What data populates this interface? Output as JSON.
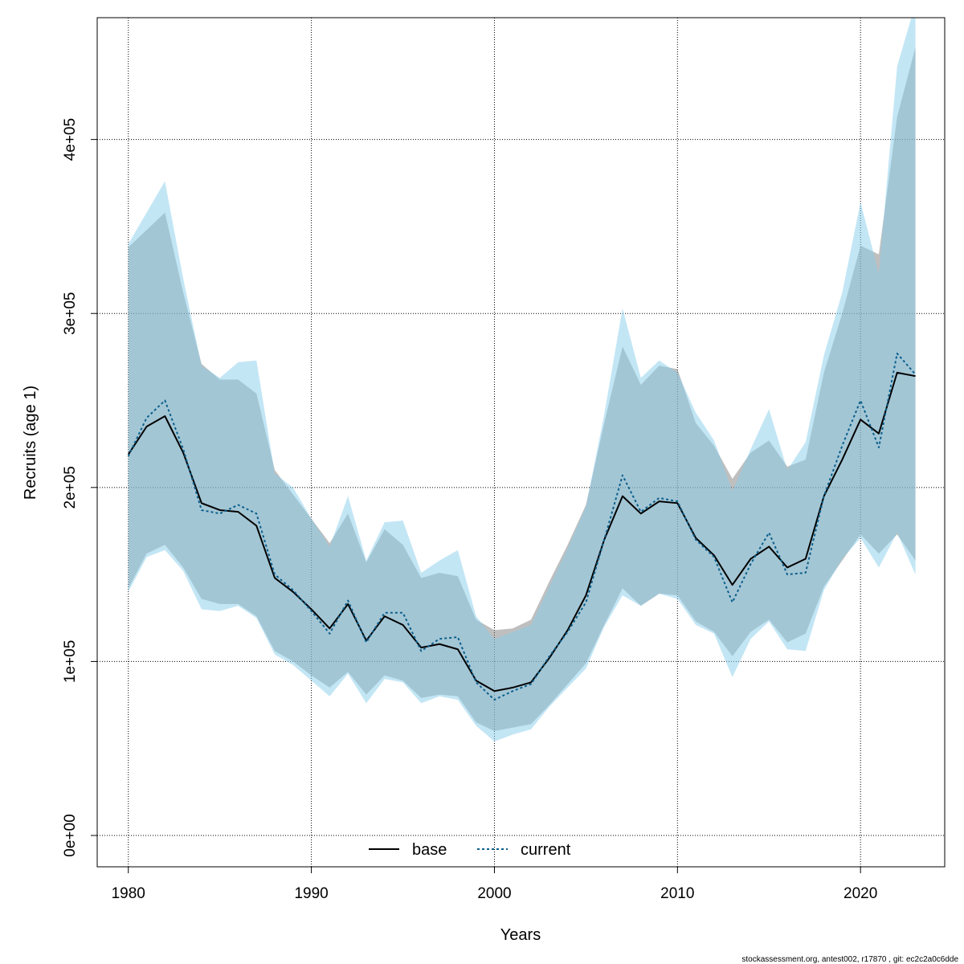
{
  "chart_data": {
    "type": "line",
    "title": "",
    "xlabel": "Years",
    "ylabel": "Recruits (age 1)",
    "xlim": [
      1978.3,
      2024.6
    ],
    "ylim": [
      -18000,
      470000
    ],
    "xticks": [
      1980,
      1990,
      2000,
      2010,
      2020
    ],
    "xtick_labels": [
      "1980",
      "1990",
      "2000",
      "2010",
      "2020"
    ],
    "yticks": [
      0,
      100000,
      200000,
      300000,
      400000
    ],
    "ytick_labels": [
      "0e+00",
      "1e+05",
      "2e+05",
      "3e+05",
      "4e+05"
    ],
    "grid": true,
    "legend_position": "bottom",
    "x": [
      1980,
      1981,
      1982,
      1983,
      1984,
      1985,
      1986,
      1987,
      1988,
      1989,
      1990,
      1991,
      1992,
      1993,
      1994,
      1995,
      1996,
      1997,
      1998,
      1999,
      2000,
      2001,
      2002,
      2003,
      2004,
      2005,
      2006,
      2007,
      2008,
      2009,
      2010,
      2011,
      2012,
      2013,
      2014,
      2015,
      2016,
      2017,
      2018,
      2019,
      2020,
      2021,
      2022,
      2023
    ],
    "series": [
      {
        "name": "base",
        "line_style": "solid",
        "color": "#000000",
        "band_color": "#7f7f7f",
        "values": [
          219000,
          235000,
          241000,
          220000,
          191000,
          187000,
          186000,
          178000,
          148000,
          140000,
          130000,
          119000,
          133000,
          112000,
          126000,
          121000,
          108000,
          110000,
          107000,
          89000,
          83000,
          85000,
          88000,
          102000,
          118000,
          138000,
          170000,
          195000,
          185000,
          192000,
          191000,
          171000,
          161000,
          144000,
          159000,
          166000,
          154000,
          159000,
          195000,
          216000,
          239000,
          231000,
          266000,
          264000
        ],
        "lower": [
          142000,
          162000,
          167000,
          154000,
          136000,
          133000,
          133000,
          126000,
          106000,
          100000,
          92000,
          85000,
          94000,
          81000,
          92000,
          89000,
          79000,
          81000,
          80000,
          65000,
          60000,
          62000,
          64000,
          75000,
          87000,
          99000,
          121000,
          142000,
          132000,
          139000,
          138000,
          123000,
          117000,
          103000,
          117000,
          124000,
          111000,
          116000,
          143000,
          158000,
          173000,
          162000,
          173000,
          158000
        ],
        "upper": [
          338000,
          348000,
          358000,
          312000,
          271000,
          262000,
          262000,
          254000,
          210000,
          196000,
          182000,
          168000,
          185000,
          157000,
          176000,
          167000,
          148000,
          151000,
          149000,
          124000,
          118000,
          119000,
          124000,
          146000,
          167000,
          190000,
          237000,
          281000,
          259000,
          270000,
          268000,
          237000,
          224000,
          205000,
          220000,
          227000,
          212000,
          216000,
          266000,
          300000,
          339000,
          334000,
          413000,
          453000
        ]
      },
      {
        "name": "current",
        "line_style": "dotted",
        "color": "#0b5f8c",
        "band_color": "#87ceeb",
        "values": [
          218000,
          240000,
          250000,
          222000,
          187000,
          185000,
          190000,
          185000,
          150000,
          141000,
          129000,
          116000,
          135000,
          111000,
          128000,
          128000,
          106000,
          113000,
          114000,
          88000,
          78000,
          83000,
          87000,
          103000,
          117000,
          134000,
          170000,
          207000,
          186000,
          194000,
          192000,
          170000,
          160000,
          134000,
          156000,
          174000,
          150000,
          151000,
          195000,
          224000,
          250000,
          223000,
          277000,
          265000
        ],
        "lower": [
          140000,
          160000,
          164000,
          152000,
          130000,
          129000,
          132000,
          125000,
          104000,
          98000,
          89000,
          80000,
          93000,
          76000,
          90000,
          88000,
          76000,
          80000,
          78000,
          63000,
          54000,
          58000,
          61000,
          74000,
          85000,
          96000,
          120000,
          138000,
          132000,
          139000,
          136000,
          121000,
          116000,
          91000,
          113000,
          123000,
          107000,
          106000,
          141000,
          159000,
          171000,
          154000,
          174000,
          150000
        ],
        "upper": [
          340000,
          358000,
          376000,
          320000,
          270000,
          263000,
          272000,
          273000,
          208000,
          200000,
          182000,
          166000,
          195000,
          158000,
          180000,
          181000,
          151000,
          158000,
          164000,
          126000,
          113000,
          117000,
          121000,
          143000,
          165000,
          189000,
          242000,
          303000,
          263000,
          273000,
          266000,
          243000,
          227000,
          198000,
          222000,
          245000,
          210000,
          226000,
          276000,
          312000,
          364000,
          323000,
          442000,
          478000
        ]
      }
    ]
  },
  "legend": {
    "items": [
      {
        "label": "base",
        "style": "solid",
        "color": "#000000"
      },
      {
        "label": "current",
        "style": "dotted",
        "color": "#0b5f8c"
      }
    ]
  },
  "footer": {
    "text": "stockassessment.org, antest002, r17870 , git: ec2c2a0c6dde"
  }
}
